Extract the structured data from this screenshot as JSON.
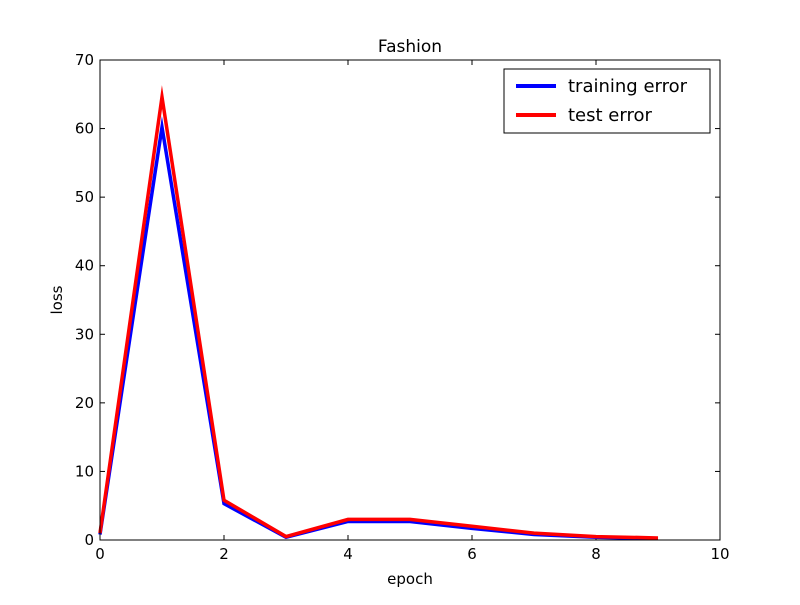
{
  "chart_data": {
    "type": "line",
    "title": "Fashion",
    "xlabel": "epoch",
    "ylabel": "loss",
    "xlim": [
      0,
      10
    ],
    "ylim": [
      0,
      70
    ],
    "xticks": [
      0,
      2,
      4,
      6,
      8,
      10
    ],
    "yticks": [
      0,
      10,
      20,
      30,
      40,
      50,
      60,
      70
    ],
    "grid": false,
    "legend_position": "top-right",
    "x": [
      0,
      1,
      2,
      3,
      4,
      5,
      6,
      7,
      8,
      9
    ],
    "series": [
      {
        "name": "training error",
        "color": "#0000ff",
        "values": [
          0.8,
          60.2,
          5.3,
          0.4,
          2.7,
          2.7,
          1.7,
          0.8,
          0.4,
          0.2
        ]
      },
      {
        "name": "test error",
        "color": "#ff0000",
        "values": [
          1.0,
          64.6,
          5.8,
          0.5,
          3.0,
          3.0,
          2.0,
          1.0,
          0.5,
          0.3
        ]
      }
    ]
  }
}
